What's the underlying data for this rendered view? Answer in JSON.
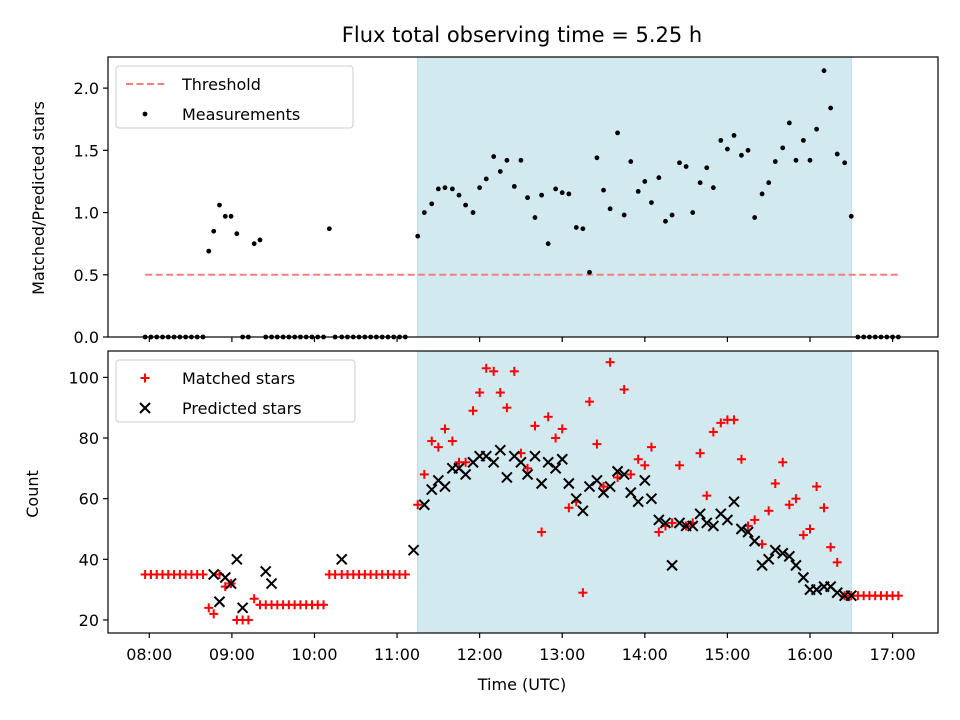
{
  "chart_data": [
    {
      "type": "scatter",
      "title": "Flux total observing time = 5.25 h",
      "xlabel": "",
      "ylabel": "Matched/Predicted stars",
      "ylim": [
        0,
        2.25
      ],
      "yticks": [
        "0.0",
        "0.5",
        "1.0",
        "1.5",
        "2.0"
      ],
      "yticks_values": [
        0,
        0.5,
        1.0,
        1.5,
        2.0
      ],
      "xlim": [
        7.5,
        17.55
      ],
      "shaded_span": [
        11.25,
        16.5
      ],
      "threshold": {
        "name": "Threshold",
        "y": 0.5,
        "x_range": [
          7.95,
          17.1
        ],
        "color": "#f08080"
      },
      "legend": {
        "position": "top-left",
        "entries": [
          "Threshold",
          "Measurements"
        ]
      },
      "series": [
        {
          "name": "Measurements",
          "color": "#000000",
          "x": [
            7.95,
            8.02,
            8.09,
            8.16,
            8.23,
            8.3,
            8.37,
            8.44,
            8.51,
            8.58,
            8.65,
            8.72,
            8.78,
            8.85,
            8.92,
            8.99,
            9.06,
            9.13,
            9.2,
            9.27,
            9.34,
            9.41,
            9.48,
            9.55,
            9.62,
            9.69,
            9.76,
            9.83,
            9.9,
            9.97,
            10.04,
            10.11,
            10.18,
            10.25,
            10.33,
            10.4,
            10.47,
            10.54,
            10.61,
            10.68,
            10.75,
            10.82,
            10.89,
            10.96,
            11.03,
            11.1,
            11.25,
            11.33,
            11.42,
            11.5,
            11.58,
            11.67,
            11.75,
            11.83,
            11.92,
            12.0,
            12.08,
            12.17,
            12.25,
            12.33,
            12.42,
            12.5,
            12.58,
            12.67,
            12.75,
            12.83,
            12.92,
            13.0,
            13.08,
            13.17,
            13.25,
            13.33,
            13.42,
            13.5,
            13.58,
            13.67,
            13.75,
            13.83,
            13.92,
            14.0,
            14.08,
            14.17,
            14.25,
            14.33,
            14.42,
            14.5,
            14.58,
            14.67,
            14.75,
            14.83,
            14.92,
            15.0,
            15.08,
            15.17,
            15.25,
            15.33,
            15.42,
            15.5,
            15.58,
            15.67,
            15.75,
            15.83,
            15.92,
            16.0,
            16.08,
            16.17,
            16.25,
            16.33,
            16.42,
            16.5,
            16.58,
            16.65,
            16.72,
            16.79,
            16.86,
            16.93,
            17.0,
            17.07
          ],
          "y": [
            0,
            0,
            0,
            0,
            0,
            0,
            0,
            0,
            0,
            0,
            0,
            0.69,
            0.85,
            1.06,
            0.97,
            0.97,
            0.83,
            0,
            0,
            0.75,
            0.78,
            0,
            0,
            0,
            0,
            0,
            0,
            0,
            0,
            0,
            0,
            0,
            0.87,
            0,
            0,
            0,
            0,
            0,
            0,
            0,
            0,
            0,
            0,
            0,
            0,
            0,
            0.81,
            1.0,
            1.07,
            1.19,
            1.2,
            1.19,
            1.14,
            1.06,
            1.0,
            1.2,
            1.27,
            1.45,
            1.33,
            1.42,
            1.21,
            1.42,
            1.12,
            0.96,
            1.14,
            0.75,
            1.19,
            1.16,
            1.15,
            0.88,
            0.87,
            0.52,
            1.44,
            1.18,
            1.03,
            1.64,
            0.98,
            1.41,
            1.17,
            1.25,
            1.08,
            1.28,
            0.93,
            0.98,
            1.4,
            1.37,
            1.0,
            1.24,
            1.36,
            1.2,
            1.58,
            1.51,
            1.62,
            1.46,
            1.5,
            0.96,
            1.15,
            1.24,
            1.41,
            1.52,
            1.72,
            1.42,
            1.58,
            1.42,
            1.67,
            2.14,
            1.84,
            1.47,
            1.4,
            0.97,
            0,
            0,
            0,
            0,
            0,
            0,
            0,
            0
          ]
        }
      ]
    },
    {
      "type": "scatter",
      "title": "",
      "xlabel": "Time (UTC)",
      "ylabel": "Count",
      "ylim": [
        15.7,
        108.7
      ],
      "yticks": [
        "20",
        "40",
        "60",
        "80",
        "100"
      ],
      "yticks_values": [
        20,
        40,
        60,
        80,
        100
      ],
      "xlim": [
        7.5,
        17.55
      ],
      "xticks": [
        "08:00",
        "09:00",
        "10:00",
        "11:00",
        "12:00",
        "13:00",
        "14:00",
        "15:00",
        "16:00",
        "17:00"
      ],
      "xticks_values": [
        8,
        9,
        10,
        11,
        12,
        13,
        14,
        15,
        16,
        17
      ],
      "shaded_span": [
        11.25,
        16.5
      ],
      "legend": {
        "position": "top-left",
        "entries": [
          "Matched stars",
          "Predicted stars"
        ]
      },
      "series": [
        {
          "name": "Matched stars",
          "marker": "+",
          "color": "#ff0000",
          "x": [
            7.95,
            8.02,
            8.09,
            8.16,
            8.23,
            8.3,
            8.37,
            8.44,
            8.51,
            8.58,
            8.65,
            8.72,
            8.78,
            8.85,
            8.92,
            8.99,
            9.06,
            9.13,
            9.2,
            9.27,
            9.34,
            9.41,
            9.48,
            9.55,
            9.62,
            9.69,
            9.76,
            9.83,
            9.9,
            9.97,
            10.04,
            10.11,
            10.18,
            10.25,
            10.33,
            10.4,
            10.47,
            10.54,
            10.61,
            10.68,
            10.75,
            10.82,
            10.89,
            10.96,
            11.03,
            11.1,
            11.25,
            11.33,
            11.42,
            11.5,
            11.58,
            11.67,
            11.75,
            11.83,
            11.92,
            12.0,
            12.08,
            12.17,
            12.25,
            12.33,
            12.42,
            12.5,
            12.58,
            12.67,
            12.75,
            12.83,
            12.92,
            13.0,
            13.08,
            13.17,
            13.25,
            13.33,
            13.42,
            13.5,
            13.58,
            13.67,
            13.75,
            13.83,
            13.92,
            14.0,
            14.08,
            14.17,
            14.25,
            14.33,
            14.42,
            14.5,
            14.58,
            14.67,
            14.75,
            14.83,
            14.92,
            15.0,
            15.08,
            15.17,
            15.25,
            15.33,
            15.42,
            15.5,
            15.58,
            15.67,
            15.75,
            15.83,
            15.92,
            16.0,
            16.08,
            16.17,
            16.25,
            16.33,
            16.42,
            16.5,
            16.58,
            16.65,
            16.72,
            16.79,
            16.86,
            16.93,
            17.0,
            17.07
          ],
          "y": [
            35,
            35,
            35,
            35,
            35,
            35,
            35,
            35,
            35,
            35,
            35,
            24,
            22,
            35,
            31,
            32,
            20,
            20,
            20,
            27,
            25,
            25,
            25,
            25,
            25,
            25,
            25,
            25,
            25,
            25,
            25,
            25,
            35,
            35,
            35,
            35,
            35,
            35,
            35,
            35,
            35,
            35,
            35,
            35,
            35,
            35,
            58,
            68,
            79,
            77,
            83,
            79,
            72,
            72,
            89,
            95,
            103,
            102,
            95,
            90,
            102,
            75,
            70,
            84,
            49,
            87,
            80,
            83,
            57,
            59,
            29,
            92,
            78,
            64,
            105,
            67,
            96,
            68,
            73,
            71,
            77,
            49,
            51,
            52,
            71,
            51,
            52,
            75,
            61,
            82,
            85,
            86,
            86,
            73,
            51,
            53,
            45,
            56,
            65,
            72,
            58,
            60,
            48,
            50,
            64,
            57,
            44,
            39,
            28,
            28,
            28,
            28,
            28,
            28,
            28,
            28,
            28,
            28
          ]
        },
        {
          "name": "Predicted stars",
          "marker": "x",
          "color": "#000000",
          "x": [
            8.78,
            8.85,
            8.92,
            8.99,
            9.06,
            9.13,
            9.41,
            9.48,
            10.33,
            11.2,
            11.33,
            11.42,
            11.5,
            11.58,
            11.67,
            11.75,
            11.83,
            11.92,
            12.0,
            12.08,
            12.17,
            12.25,
            12.33,
            12.42,
            12.5,
            12.58,
            12.67,
            12.75,
            12.83,
            12.92,
            13.0,
            13.08,
            13.17,
            13.25,
            13.33,
            13.42,
            13.5,
            13.58,
            13.67,
            13.75,
            13.83,
            13.92,
            14.0,
            14.08,
            14.17,
            14.25,
            14.33,
            14.42,
            14.5,
            14.58,
            14.67,
            14.75,
            14.83,
            14.92,
            15.0,
            15.08,
            15.17,
            15.25,
            15.33,
            15.42,
            15.5,
            15.58,
            15.67,
            15.75,
            15.83,
            15.92,
            16.0,
            16.08,
            16.17,
            16.25,
            16.33,
            16.42,
            16.5
          ],
          "y": [
            35,
            26,
            34,
            32,
            40,
            24,
            36,
            32,
            40,
            43,
            58,
            63,
            66,
            64,
            70,
            70,
            68,
            72,
            74,
            74,
            72,
            76,
            67,
            74,
            72,
            68,
            74,
            65,
            72,
            70,
            73,
            65,
            60,
            56,
            64,
            66,
            62,
            64,
            69,
            68,
            62,
            59,
            66,
            60,
            53,
            52,
            38,
            52,
            51,
            51,
            55,
            52,
            51,
            55,
            53,
            59,
            50,
            49,
            46,
            38,
            40,
            43,
            42,
            41,
            38,
            34,
            30,
            30,
            31,
            31,
            29,
            28,
            28
          ]
        }
      ]
    }
  ]
}
